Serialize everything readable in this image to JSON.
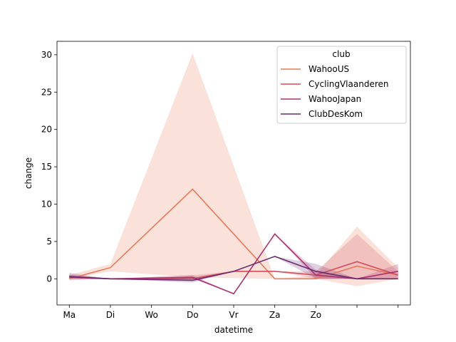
{
  "chart_data": {
    "type": "line",
    "xlabel": "datetime",
    "ylabel": "change",
    "x_tick_labels": [
      "Ma",
      "Di",
      "Wo",
      "Do",
      "Vr",
      "Za",
      "Zo",
      "",
      ""
    ],
    "y_ticks": [
      0,
      5,
      10,
      15,
      20,
      25,
      30
    ],
    "xlim": [
      -0.3,
      8.3
    ],
    "ylim": [
      -3.5,
      31.8
    ],
    "legend": {
      "title": "club",
      "placement": "top-right"
    },
    "series": [
      {
        "name": "WahooUS",
        "color": "#e8795a",
        "x": [
          0,
          1,
          3,
          5,
          6,
          7,
          8
        ],
        "y": [
          0,
          1.5,
          12,
          0,
          0,
          1.7,
          0.5
        ],
        "ci_low": [
          0,
          1.0,
          0.2,
          0,
          0,
          -1.0,
          0
        ],
        "ci_high": [
          0.5,
          2.0,
          30.2,
          0,
          0.5,
          7.0,
          1.5
        ]
      },
      {
        "name": "CyclingVlaanderen",
        "color": "#d24c5a",
        "x": [
          0,
          1,
          3,
          4,
          5,
          6,
          7,
          8
        ],
        "y": [
          0.3,
          0,
          0,
          1,
          1,
          0.5,
          2.3,
          0.5
        ],
        "ci_low": [
          0,
          0,
          0,
          1,
          1,
          0,
          0,
          0
        ],
        "ci_high": [
          0.6,
          0,
          0.5,
          1,
          1,
          1,
          6.0,
          1
        ]
      },
      {
        "name": "WahooJapan",
        "color": "#a8326e",
        "x": [
          0,
          1,
          3,
          4,
          5,
          6,
          7,
          8
        ],
        "y": [
          0.2,
          0,
          0.2,
          -2,
          6,
          0.5,
          0,
          1
        ],
        "ci_low": [
          0,
          0,
          0,
          -2,
          6,
          0,
          0,
          0
        ],
        "ci_high": [
          0.5,
          0,
          0.5,
          -2,
          6,
          1.2,
          0,
          2
        ]
      },
      {
        "name": "ClubDesKom",
        "color": "#6b2a70",
        "x": [
          0,
          1,
          3,
          4,
          5,
          6,
          7,
          8
        ],
        "y": [
          0.3,
          0,
          -0.2,
          1,
          3,
          1,
          0,
          0
        ],
        "ci_low": [
          -0.2,
          0,
          -0.5,
          1,
          3,
          0,
          0,
          0
        ],
        "ci_high": [
          0.8,
          0,
          0.2,
          1,
          3,
          2,
          0,
          0
        ]
      }
    ]
  }
}
